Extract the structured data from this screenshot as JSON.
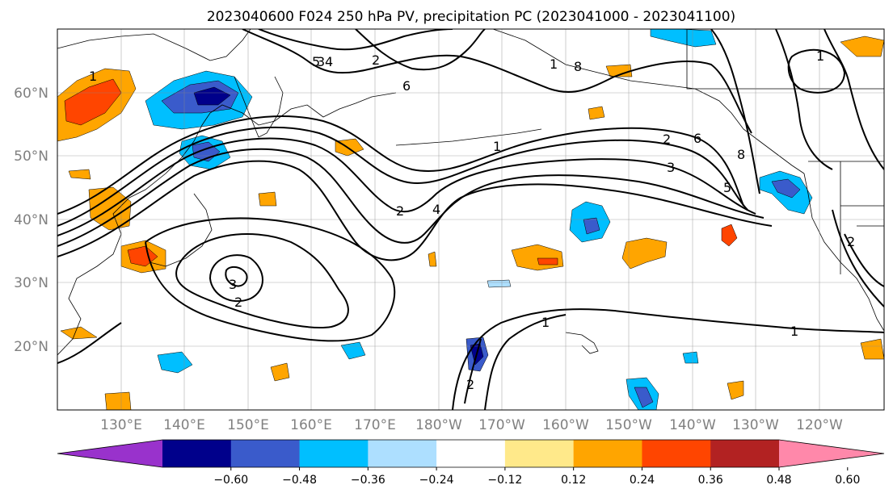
{
  "title": "2023040600 F024 250 hPa PV, precipitation PC (2023041000 - 2023041100)",
  "lat_labels": [
    "60°N",
    "50°N",
    "40°N",
    "30°N",
    "20°N"
  ],
  "lon_labels": [
    "130°E",
    "140°E",
    "150°E",
    "160°E",
    "170°E",
    "180°W",
    "170°W",
    "160°W",
    "150°W",
    "140°W",
    "130°W",
    "120°W"
  ],
  "colorbar": {
    "colors": [
      "#9932CC",
      "#00008B",
      "#3A5BCB",
      "#00BFFF",
      "#ADDFFF",
      "#FFFFFF",
      "#FFE98A",
      "#FFA500",
      "#FF4500",
      "#B22222",
      "#FF88AA"
    ],
    "tick_labels": [
      "−0.60",
      "−0.48",
      "−0.36",
      "−0.24",
      "−0.12",
      "0.12",
      "0.24",
      "0.36",
      "0.48",
      "0.60"
    ]
  },
  "contour_labels": [
    "1",
    "2",
    "3",
    "4",
    "5",
    "6",
    "8",
    "2",
    "1",
    "3",
    "2",
    "1",
    "2",
    "2",
    "1",
    "1",
    "3",
    "6",
    "8",
    "5",
    "2",
    "4",
    "1"
  ]
}
